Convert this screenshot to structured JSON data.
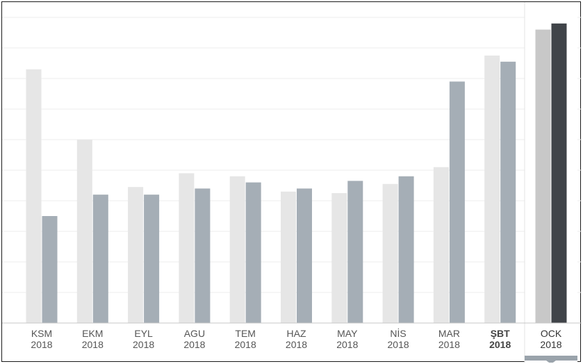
{
  "chart_data": {
    "type": "bar",
    "title": "",
    "xlabel": "",
    "ylabel": "",
    "ylim": [
      0,
      10
    ],
    "grid": true,
    "categories": [
      {
        "month": "KSM",
        "year": "2018",
        "bold": false,
        "selected": false
      },
      {
        "month": "EKM",
        "year": "2018",
        "bold": false,
        "selected": false
      },
      {
        "month": "EYL",
        "year": "2018",
        "bold": false,
        "selected": false
      },
      {
        "month": "AGU",
        "year": "2018",
        "bold": false,
        "selected": false
      },
      {
        "month": "TEM",
        "year": "2018",
        "bold": false,
        "selected": false
      },
      {
        "month": "HAZ",
        "year": "2018",
        "bold": false,
        "selected": false
      },
      {
        "month": "MAY",
        "year": "2018",
        "bold": false,
        "selected": false
      },
      {
        "month": "NİS",
        "year": "2018",
        "bold": false,
        "selected": false
      },
      {
        "month": "MAR",
        "year": "2018",
        "bold": false,
        "selected": false
      },
      {
        "month": "ŞBT",
        "year": "2018",
        "bold": true,
        "selected": false
      },
      {
        "month": "OCK",
        "year": "2018",
        "bold": false,
        "selected": true
      }
    ],
    "series": [
      {
        "values": [
          8.3,
          6.0,
          4.45,
          4.9,
          4.8,
          4.3,
          4.25,
          4.55,
          5.1,
          8.75,
          9.6
        ],
        "color": "#e6e6e6",
        "selected_color": "#c8c8c8"
      },
      {
        "values": [
          3.5,
          4.2,
          4.2,
          4.4,
          4.6,
          4.4,
          4.65,
          4.8,
          7.9,
          8.55,
          9.8
        ],
        "color": "#a5aeb6",
        "selected_color": "#404449"
      }
    ]
  }
}
